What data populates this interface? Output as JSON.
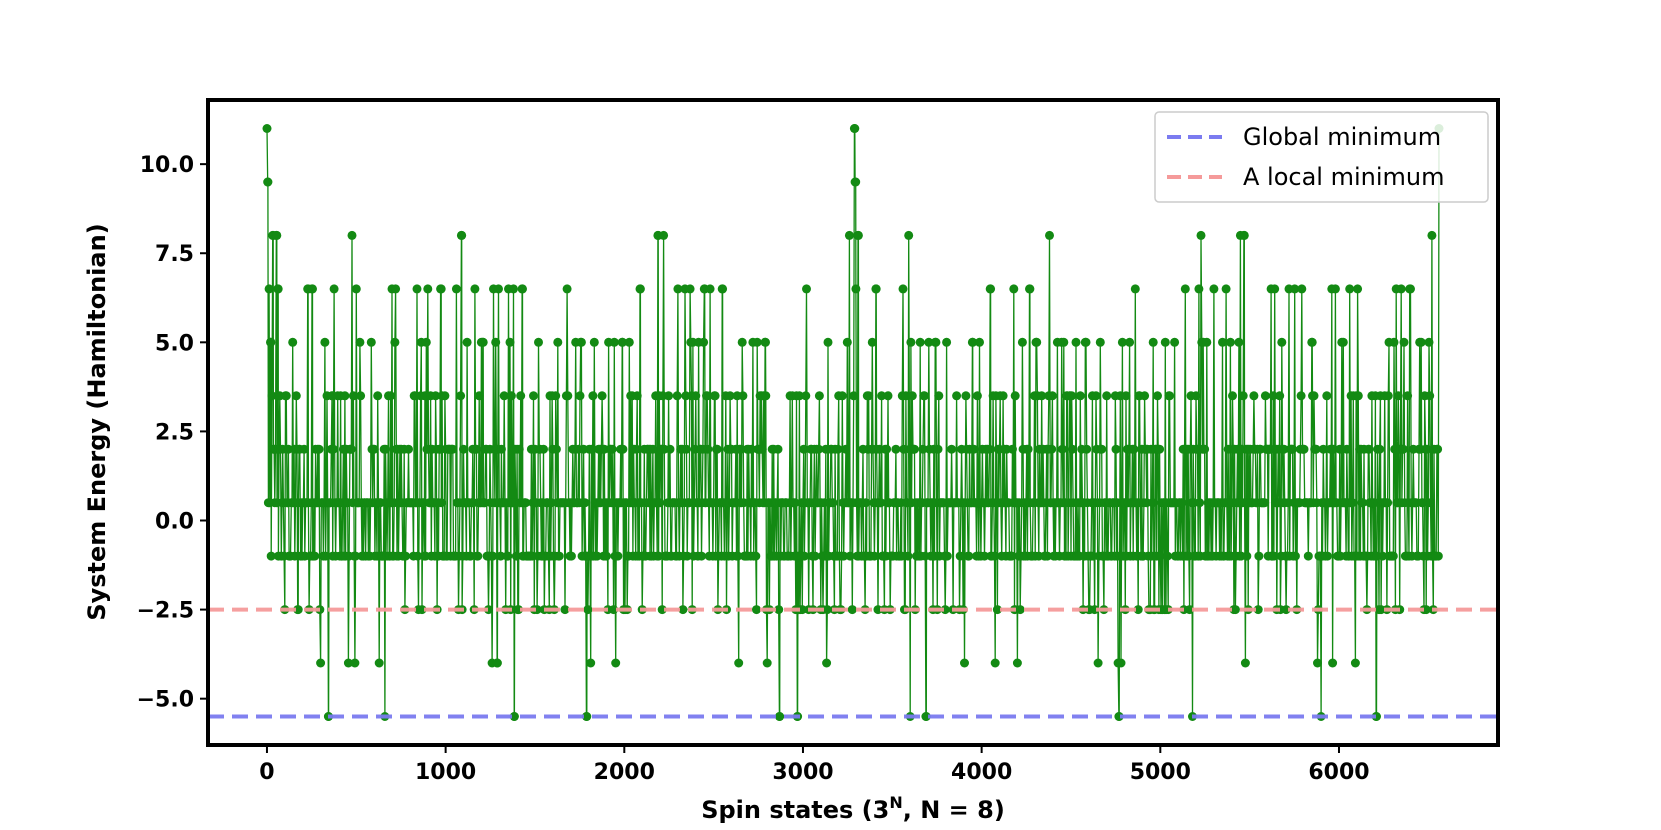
{
  "chart_data": {
    "type": "line",
    "xlabel": "Spin states (3",
    "xlabel_sup": "N",
    "xlabel_tail": ", N = 8)",
    "ylabel": "System Energy (Hamiltonian)",
    "xlim": [
      -330,
      6890
    ],
    "ylim": [
      -6.3,
      11.8
    ],
    "xticks": [
      0,
      1000,
      2000,
      3000,
      4000,
      5000,
      6000
    ],
    "yticks": [
      -5.0,
      -2.5,
      0.0,
      2.5,
      5.0,
      7.5,
      10.0
    ],
    "ytick_labels": [
      "−5.0",
      "−2.5",
      "0.0",
      "2.5",
      "5.0",
      "7.5",
      "10.0"
    ],
    "grid": false,
    "legend_position": "top-right",
    "reference_lines": [
      {
        "name": "Global minimum",
        "y": -5.5,
        "color": "#7b7bf0",
        "style": "dashed"
      },
      {
        "name": "A local minimum",
        "y": -2.5,
        "color": "#f59a9a",
        "style": "dashed"
      }
    ],
    "series": [
      {
        "color": "#138a13",
        "num_points": 6561,
        "energy_levels": [
          -5.5,
          -4.0,
          -2.5,
          -1.0,
          0.5,
          2.0,
          3.5,
          5.0,
          6.5,
          8.0,
          9.5,
          11.0
        ],
        "points": [
          [
            0,
            11.0
          ],
          [
            5,
            9.5
          ],
          [
            12,
            6.5
          ],
          [
            22,
            5.0
          ],
          [
            35,
            8.0
          ],
          [
            55,
            8.0
          ],
          [
            63,
            6.5
          ],
          [
            100,
            -2.5
          ],
          [
            175,
            -2.5
          ],
          [
            230,
            6.5
          ],
          [
            255,
            6.5
          ],
          [
            300,
            -4.0
          ],
          [
            345,
            -5.5
          ],
          [
            365,
            3.5
          ],
          [
            500,
            6.5
          ],
          [
            520,
            5.0
          ],
          [
            660,
            -5.5
          ],
          [
            720,
            6.5
          ],
          [
            840,
            6.5
          ],
          [
            975,
            6.5
          ],
          [
            1060,
            6.5
          ],
          [
            1090,
            8.0
          ],
          [
            1120,
            5.0
          ],
          [
            1210,
            5.0
          ],
          [
            1290,
            -4.0
          ],
          [
            1360,
            5.0
          ],
          [
            1385,
            -5.5
          ],
          [
            1430,
            6.5
          ],
          [
            1520,
            5.0
          ],
          [
            1680,
            6.5
          ],
          [
            1790,
            -5.5
          ],
          [
            1990,
            5.0
          ],
          [
            2090,
            6.5
          ],
          [
            2190,
            8.0
          ],
          [
            2300,
            6.5
          ],
          [
            2450,
            6.5
          ],
          [
            2550,
            6.5
          ],
          [
            2640,
            -4.0
          ],
          [
            2790,
            5.0
          ],
          [
            2870,
            -5.5
          ],
          [
            2970,
            -5.5
          ],
          [
            3020,
            6.5
          ],
          [
            3140,
            5.0
          ],
          [
            3260,
            8.0
          ],
          [
            3290,
            11.0
          ],
          [
            3295,
            9.5
          ],
          [
            3310,
            8.0
          ],
          [
            3410,
            6.5
          ],
          [
            3560,
            6.5
          ],
          [
            3600,
            -5.5
          ],
          [
            3690,
            -5.5
          ],
          [
            3760,
            3.5
          ],
          [
            3950,
            5.0
          ],
          [
            4050,
            6.5
          ],
          [
            4180,
            6.5
          ],
          [
            4270,
            6.5
          ],
          [
            4380,
            8.0
          ],
          [
            4460,
            5.0
          ],
          [
            4620,
            3.5
          ],
          [
            4770,
            -5.5
          ],
          [
            4860,
            6.5
          ],
          [
            4960,
            5.0
          ],
          [
            5080,
            5.0
          ],
          [
            5180,
            -5.5
          ],
          [
            5300,
            6.5
          ],
          [
            5440,
            5.0
          ],
          [
            5470,
            8.0
          ],
          [
            5620,
            6.5
          ],
          [
            5720,
            6.5
          ],
          [
            5850,
            5.0
          ],
          [
            5900,
            -5.5
          ],
          [
            5980,
            6.5
          ],
          [
            6060,
            6.5
          ],
          [
            6210,
            -5.5
          ],
          [
            6320,
            6.5
          ],
          [
            6400,
            6.5
          ],
          [
            6520,
            8.0
          ],
          [
            6560,
            11.0
          ]
        ]
      }
    ]
  }
}
